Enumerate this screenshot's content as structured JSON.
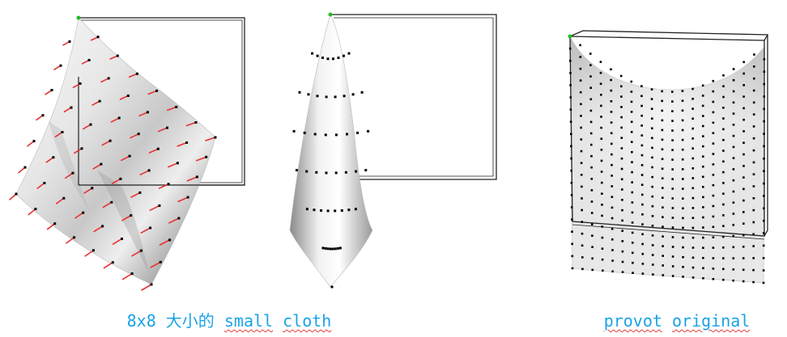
{
  "captions": {
    "left_prefix": "8x8 大小的 ",
    "left_words": [
      "small",
      "cloth"
    ],
    "right_words": [
      "provot",
      "original"
    ]
  },
  "colors": {
    "caption": "#1aa3e6",
    "spellcheck_underline": "#e04040",
    "frame": "#222222",
    "anchor_vertex": "#20c020",
    "mass_point": "#000000",
    "velocity_vector": "#e83030"
  },
  "simulations": [
    {
      "name": "small-cloth-swinging",
      "grid": [
        8,
        8
      ],
      "pinned_corners": 1,
      "shows_velocity_vectors": true
    },
    {
      "name": "small-cloth-hanging",
      "grid": [
        8,
        8
      ],
      "pinned_corners": 1,
      "shows_velocity_vectors": false
    },
    {
      "name": "provot-cloth",
      "grid": [
        20,
        20
      ],
      "pinned_corners": 2,
      "shows_velocity_vectors": false
    }
  ]
}
